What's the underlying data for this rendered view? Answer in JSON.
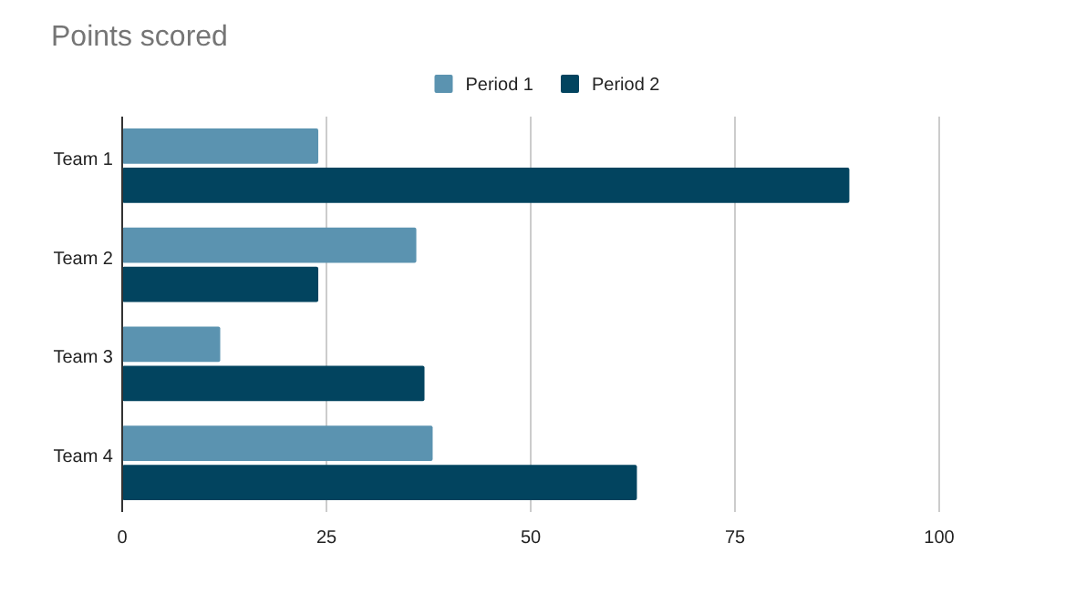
{
  "chart_data": {
    "type": "bar",
    "orientation": "horizontal",
    "title": "Points scored",
    "categories": [
      "Team 1",
      "Team 2",
      "Team 3",
      "Team 4"
    ],
    "series": [
      {
        "name": "Period 1",
        "color": "#5b93b0",
        "values": [
          24,
          36,
          12,
          38
        ]
      },
      {
        "name": "Period 2",
        "color": "#02445f",
        "values": [
          89,
          24,
          37,
          63
        ]
      }
    ],
    "xlim": [
      0,
      100
    ],
    "xticks": [
      0,
      25,
      50,
      75,
      100
    ],
    "grid": "x",
    "legend": "top"
  }
}
